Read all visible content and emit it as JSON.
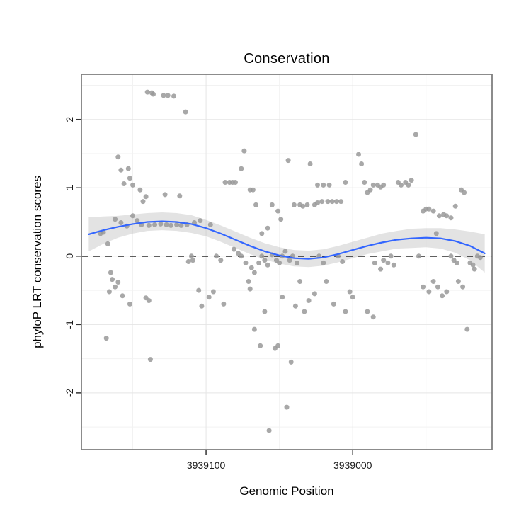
{
  "chart_data": {
    "type": "scatter",
    "title": "Conservation",
    "xlabel": "Genomic Position",
    "ylabel": "phyloP LRT conservation scores",
    "x_reversed": true,
    "xlim": [
      3939185,
      3938905
    ],
    "ylim": [
      -2.83,
      2.66
    ],
    "x_ticks": [
      {
        "value": 3939100,
        "label": "3939100"
      },
      {
        "value": 3939000,
        "label": "3939000"
      }
    ],
    "x_minor_ticks": [
      3939150,
      3939050,
      3938950
    ],
    "y_ticks": [
      {
        "value": -2,
        "label": "-2"
      },
      {
        "value": -1,
        "label": "-1"
      },
      {
        "value": 0,
        "label": "0"
      },
      {
        "value": 1,
        "label": "1"
      },
      {
        "value": 2,
        "label": "2"
      }
    ],
    "y_minor_ticks": [
      -2.5,
      -1.5,
      -0.5,
      0.5,
      1.5,
      2.5
    ],
    "zero_line": {
      "y": 0,
      "style": "dashed",
      "color": "#000000"
    },
    "colors": {
      "point": "#999999",
      "smooth": "#3366FF",
      "band": "#b8b8b8",
      "grid_major": "#e5e5e5",
      "grid_minor": "#f2f2f2",
      "border": "#7f7f7f",
      "tick": "#333333",
      "text": "#1a1a1a"
    },
    "points": [
      [
        3939172,
        0.33
      ],
      [
        3939170,
        0.35
      ],
      [
        3939167,
        0.18
      ],
      [
        3939165,
        -0.24
      ],
      [
        3939164,
        -0.34
      ],
      [
        3939162,
        0.54
      ],
      [
        3939162,
        -0.45
      ],
      [
        3939166,
        -0.52
      ],
      [
        3939160,
        -0.38
      ],
      [
        3939168,
        -1.2
      ],
      [
        3939158,
        0.49
      ],
      [
        3939157,
        -0.58
      ],
      [
        3939160,
        1.45
      ],
      [
        3939158,
        1.26
      ],
      [
        3939153,
        1.28
      ],
      [
        3939152,
        1.14
      ],
      [
        3939156,
        1.06
      ],
      [
        3939150,
        1.04
      ],
      [
        3939154,
        0.44
      ],
      [
        3939150,
        0.59
      ],
      [
        3939147,
        0.52
      ],
      [
        3939145,
        0.97
      ],
      [
        3939143,
        0.8
      ],
      [
        3939141,
        0.87
      ],
      [
        3939144,
        0.46
      ],
      [
        3939152,
        -0.7
      ],
      [
        3939139,
        -0.65
      ],
      [
        3939141,
        -0.61
      ],
      [
        3939138,
        -1.51
      ],
      [
        3939140,
        2.4
      ],
      [
        3939137,
        2.39
      ],
      [
        3939136,
        2.37
      ],
      [
        3939129,
        2.35
      ],
      [
        3939126,
        2.35
      ],
      [
        3939122,
        2.34
      ],
      [
        3939114,
        2.11
      ],
      [
        3939139,
        0.45
      ],
      [
        3939135,
        0.46
      ],
      [
        3939131,
        0.47
      ],
      [
        3939127,
        0.46
      ],
      [
        3939124,
        0.45
      ],
      [
        3939120,
        0.46
      ],
      [
        3939117,
        0.45
      ],
      [
        3939113,
        0.46
      ],
      [
        3939128,
        0.9
      ],
      [
        3939118,
        0.88
      ],
      [
        3939110,
        0.0
      ],
      [
        3939109,
        -0.06
      ],
      [
        3939105,
        -0.5
      ],
      [
        3939103,
        -0.73
      ],
      [
        3939098,
        -0.6
      ],
      [
        3939095,
        -0.52
      ],
      [
        3939093,
        0.0
      ],
      [
        3939090,
        -0.06
      ],
      [
        3939088,
        -0.7
      ],
      [
        3939112,
        -0.08
      ],
      [
        3939108,
        0.49
      ],
      [
        3939104,
        0.52
      ],
      [
        3939097,
        0.46
      ],
      [
        3939087,
        1.08
      ],
      [
        3939084,
        1.08
      ],
      [
        3939082,
        1.08
      ],
      [
        3939080,
        1.08
      ],
      [
        3939076,
        1.28
      ],
      [
        3939074,
        1.54
      ],
      [
        3939070,
        0.97
      ],
      [
        3939068,
        0.97
      ],
      [
        3939066,
        0.75
      ],
      [
        3939081,
        0.1
      ],
      [
        3939078,
        0.04
      ],
      [
        3939076,
        0.0
      ],
      [
        3939073,
        -0.1
      ],
      [
        3939069,
        -0.17
      ],
      [
        3939067,
        -0.24
      ],
      [
        3939064,
        -0.1
      ],
      [
        3939062,
        0.0
      ],
      [
        3939060,
        -0.06
      ],
      [
        3939058,
        -0.13
      ],
      [
        3939055,
        0.02
      ],
      [
        3939052,
        -0.06
      ],
      [
        3939050,
        -0.1
      ],
      [
        3939048,
        0.0
      ],
      [
        3939046,
        0.07
      ],
      [
        3939043,
        -0.06
      ],
      [
        3939041,
        0.0
      ],
      [
        3939038,
        -0.1
      ],
      [
        3939071,
        -0.37
      ],
      [
        3939070,
        -0.48
      ],
      [
        3939067,
        -1.07
      ],
      [
        3939063,
        -1.31
      ],
      [
        3939060,
        -0.81
      ],
      [
        3939057,
        -2.55
      ],
      [
        3939053,
        -1.35
      ],
      [
        3939051,
        -1.31
      ],
      [
        3939048,
        -0.6
      ],
      [
        3939045,
        -2.21
      ],
      [
        3939042,
        -1.55
      ],
      [
        3939039,
        -0.73
      ],
      [
        3939036,
        -0.37
      ],
      [
        3939062,
        0.33
      ],
      [
        3939058,
        0.41
      ],
      [
        3939055,
        0.75
      ],
      [
        3939051,
        0.66
      ],
      [
        3939049,
        0.54
      ],
      [
        3939044,
        1.4
      ],
      [
        3939040,
        0.75
      ],
      [
        3939036,
        0.75
      ],
      [
        3939034,
        0.73
      ],
      [
        3939031,
        0.75
      ],
      [
        3939029,
        1.35
      ],
      [
        3939026,
        0.75
      ],
      [
        3939024,
        0.78
      ],
      [
        3939021,
        0.8
      ],
      [
        3939017,
        0.8
      ],
      [
        3939014,
        0.8
      ],
      [
        3939011,
        0.8
      ],
      [
        3939008,
        0.8
      ],
      [
        3939024,
        1.04
      ],
      [
        3939020,
        1.04
      ],
      [
        3939016,
        1.04
      ],
      [
        3939005,
        1.08
      ],
      [
        3939033,
        -0.81
      ],
      [
        3939030,
        -0.65
      ],
      [
        3939026,
        -0.55
      ],
      [
        3939023,
        0.0
      ],
      [
        3939020,
        -0.1
      ],
      [
        3939018,
        -0.37
      ],
      [
        3939013,
        -0.7
      ],
      [
        3939010,
        0.0
      ],
      [
        3939007,
        -0.08
      ],
      [
        3939005,
        -0.81
      ],
      [
        3939002,
        -0.52
      ],
      [
        3939000,
        -0.6
      ],
      [
        3938996,
        1.49
      ],
      [
        3938994,
        1.35
      ],
      [
        3938992,
        1.08
      ],
      [
        3938990,
        0.93
      ],
      [
        3938988,
        0.97
      ],
      [
        3938986,
        1.04
      ],
      [
        3938983,
        1.04
      ],
      [
        3938981,
        1.01
      ],
      [
        3938979,
        1.04
      ],
      [
        3938990,
        -0.81
      ],
      [
        3938986,
        -0.89
      ],
      [
        3938985,
        -0.1
      ],
      [
        3938981,
        -0.19
      ],
      [
        3938979,
        -0.06
      ],
      [
        3938976,
        -0.1
      ],
      [
        3938974,
        0.0
      ],
      [
        3938972,
        -0.13
      ],
      [
        3938969,
        1.08
      ],
      [
        3938967,
        1.04
      ],
      [
        3938964,
        1.08
      ],
      [
        3938962,
        1.04
      ],
      [
        3938960,
        1.11
      ],
      [
        3938957,
        1.78
      ],
      [
        3938955,
        0.0
      ],
      [
        3938952,
        0.66
      ],
      [
        3938950,
        0.69
      ],
      [
        3938948,
        0.69
      ],
      [
        3938945,
        0.66
      ],
      [
        3938943,
        0.33
      ],
      [
        3938941,
        0.59
      ],
      [
        3938938,
        0.61
      ],
      [
        3938936,
        0.59
      ],
      [
        3938933,
        0.56
      ],
      [
        3938952,
        -0.45
      ],
      [
        3938948,
        -0.52
      ],
      [
        3938945,
        -0.37
      ],
      [
        3938942,
        -0.45
      ],
      [
        3938939,
        -0.58
      ],
      [
        3938936,
        -0.52
      ],
      [
        3938933,
        0.0
      ],
      [
        3938931,
        -0.06
      ],
      [
        3938929,
        -0.1
      ],
      [
        3938926,
        0.97
      ],
      [
        3938924,
        0.93
      ],
      [
        3938930,
        0.73
      ],
      [
        3938928,
        -0.37
      ],
      [
        3938925,
        -0.45
      ],
      [
        3938922,
        -1.07
      ],
      [
        3938920,
        -0.1
      ],
      [
        3938918,
        -0.13
      ],
      [
        3938917,
        -0.19
      ],
      [
        3938915,
        0.0
      ],
      [
        3938913,
        -0.02
      ]
    ],
    "smooth": {
      "x": [
        3939180,
        3939170,
        3939160,
        3939150,
        3939140,
        3939130,
        3939120,
        3939110,
        3939100,
        3939090,
        3939080,
        3939070,
        3939060,
        3939050,
        3939040,
        3939030,
        3939020,
        3939010,
        3939000,
        3938990,
        3938980,
        3938970,
        3938960,
        3938950,
        3938940,
        3938930,
        3938920,
        3938910
      ],
      "y": [
        0.32,
        0.38,
        0.43,
        0.47,
        0.5,
        0.51,
        0.5,
        0.47,
        0.41,
        0.33,
        0.24,
        0.15,
        0.07,
        0.01,
        -0.03,
        -0.04,
        -0.02,
        0.03,
        0.09,
        0.15,
        0.2,
        0.24,
        0.26,
        0.27,
        0.26,
        0.22,
        0.15,
        0.04
      ],
      "y_lo": [
        0.07,
        0.18,
        0.27,
        0.33,
        0.37,
        0.38,
        0.37,
        0.34,
        0.29,
        0.21,
        0.12,
        0.03,
        -0.05,
        -0.11,
        -0.15,
        -0.16,
        -0.14,
        -0.09,
        -0.03,
        0.03,
        0.07,
        0.11,
        0.12,
        0.13,
        0.11,
        0.05,
        -0.06,
        -0.24
      ],
      "y_hi": [
        0.57,
        0.58,
        0.59,
        0.61,
        0.63,
        0.64,
        0.63,
        0.6,
        0.53,
        0.45,
        0.36,
        0.27,
        0.19,
        0.13,
        0.09,
        0.08,
        0.1,
        0.15,
        0.21,
        0.27,
        0.33,
        0.37,
        0.4,
        0.41,
        0.41,
        0.39,
        0.36,
        0.32
      ]
    }
  }
}
